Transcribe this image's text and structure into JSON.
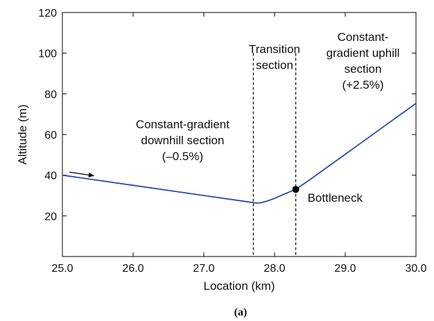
{
  "chart_data": {
    "type": "line",
    "xlabel": "Location (km)",
    "ylabel": "Altitude (m)",
    "xlim": [
      25.0,
      30.0
    ],
    "ylim": [
      0,
      120
    ],
    "x_ticks": [
      "25.0",
      "26.0",
      "27.0",
      "28.0",
      "29.0",
      "30.0"
    ],
    "y_ticks": [
      "20",
      "40",
      "60",
      "80",
      "100",
      "120"
    ],
    "grid": false,
    "series": [
      {
        "color": "#2a4aa8",
        "points": [
          [
            25.0,
            40.0
          ],
          [
            26.0,
            35.0
          ],
          [
            27.0,
            30.0
          ],
          [
            27.6,
            27.0
          ],
          [
            27.7,
            26.5
          ],
          [
            27.75,
            26.3
          ],
          [
            27.8,
            26.4
          ],
          [
            27.9,
            27.3
          ],
          [
            28.0,
            28.6
          ],
          [
            28.1,
            30.1
          ],
          [
            28.2,
            31.6
          ],
          [
            28.3,
            33.0
          ],
          [
            28.5,
            37.8
          ],
          [
            29.0,
            50.3
          ],
          [
            29.5,
            62.8
          ],
          [
            30.0,
            75.3
          ]
        ]
      }
    ],
    "vlines": [
      27.7,
      28.3
    ],
    "bottleneck": {
      "x": 28.3,
      "y": 33.0,
      "label": "Bottleneck"
    },
    "arrow": {
      "from": [
        25.1,
        41.5
      ],
      "to": [
        25.45,
        39.7
      ]
    },
    "annotations": [
      {
        "lines": [
          "Constant-gradient",
          "downhill section",
          "(–0.5%)"
        ],
        "x": 26.7,
        "y": 63
      },
      {
        "lines": [
          "Transition",
          "section"
        ],
        "x": 28.0,
        "y": 100
      },
      {
        "lines": [
          "Constant-",
          "gradient uphill",
          "section",
          "(+2.5%)"
        ],
        "x": 29.25,
        "y": 106
      }
    ]
  },
  "caption": "(a)"
}
